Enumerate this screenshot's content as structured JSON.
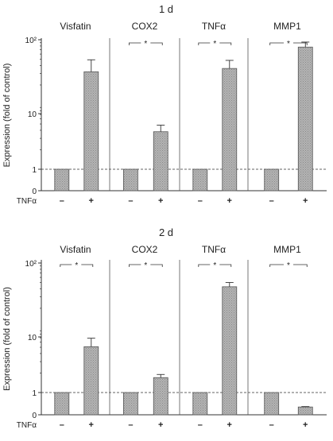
{
  "figure": {
    "ylabel": "Expression (fold of control)",
    "treatment_label": "TNFα",
    "minus_symbol": "–",
    "plus_symbol": "+",
    "significance_marker": "*"
  },
  "chart_data": [
    {
      "type": "bar",
      "title": "1 d",
      "ylabel": "Expression (fold of control)",
      "yscale": "log (0 and 1 shown linearly at base)",
      "yticks": [
        "0",
        "1",
        "10",
        "10²"
      ],
      "reference_line": {
        "y": 1,
        "style": "dashed"
      },
      "panels": [
        {
          "name": "Visfatin",
          "significant": false,
          "categories": [
            "–",
            "+"
          ],
          "values": [
            1.0,
            32
          ],
          "error": [
            0,
            17
          ]
        },
        {
          "name": "COX2",
          "significant": true,
          "categories": [
            "–",
            "+"
          ],
          "values": [
            1.0,
            3.8
          ],
          "error": [
            0,
            1.0
          ]
        },
        {
          "name": "TNFα",
          "significant": true,
          "categories": [
            "–",
            "+"
          ],
          "values": [
            1.0,
            36
          ],
          "error": [
            0,
            12
          ]
        },
        {
          "name": "MMP1",
          "significant": true,
          "categories": [
            "–",
            "+"
          ],
          "values": [
            1.0,
            77
          ],
          "error": [
            0,
            15
          ]
        }
      ]
    },
    {
      "type": "bar",
      "title": "2 d",
      "ylabel": "Expression (fold of control)",
      "yscale": "log (0 and 1 shown linearly at base)",
      "yticks": [
        "0",
        "1",
        "10",
        "10²"
      ],
      "reference_line": {
        "y": 1,
        "style": "dashed"
      },
      "panels": [
        {
          "name": "Visfatin",
          "significant": true,
          "categories": [
            "–",
            "+"
          ],
          "values": [
            1.0,
            5.1
          ],
          "error": [
            0,
            1.8
          ]
        },
        {
          "name": "COX2",
          "significant": true,
          "categories": [
            "–",
            "+"
          ],
          "values": [
            1.0,
            1.7
          ],
          "error": [
            0,
            0.2
          ]
        },
        {
          "name": "TNFα",
          "significant": true,
          "categories": [
            "–",
            "+"
          ],
          "values": [
            1.0,
            43
          ],
          "error": [
            0,
            7
          ]
        },
        {
          "name": "MMP1",
          "significant": true,
          "categories": [
            "–",
            "+"
          ],
          "values": [
            1.0,
            0.35
          ],
          "error": [
            0,
            0.02
          ]
        }
      ]
    }
  ]
}
